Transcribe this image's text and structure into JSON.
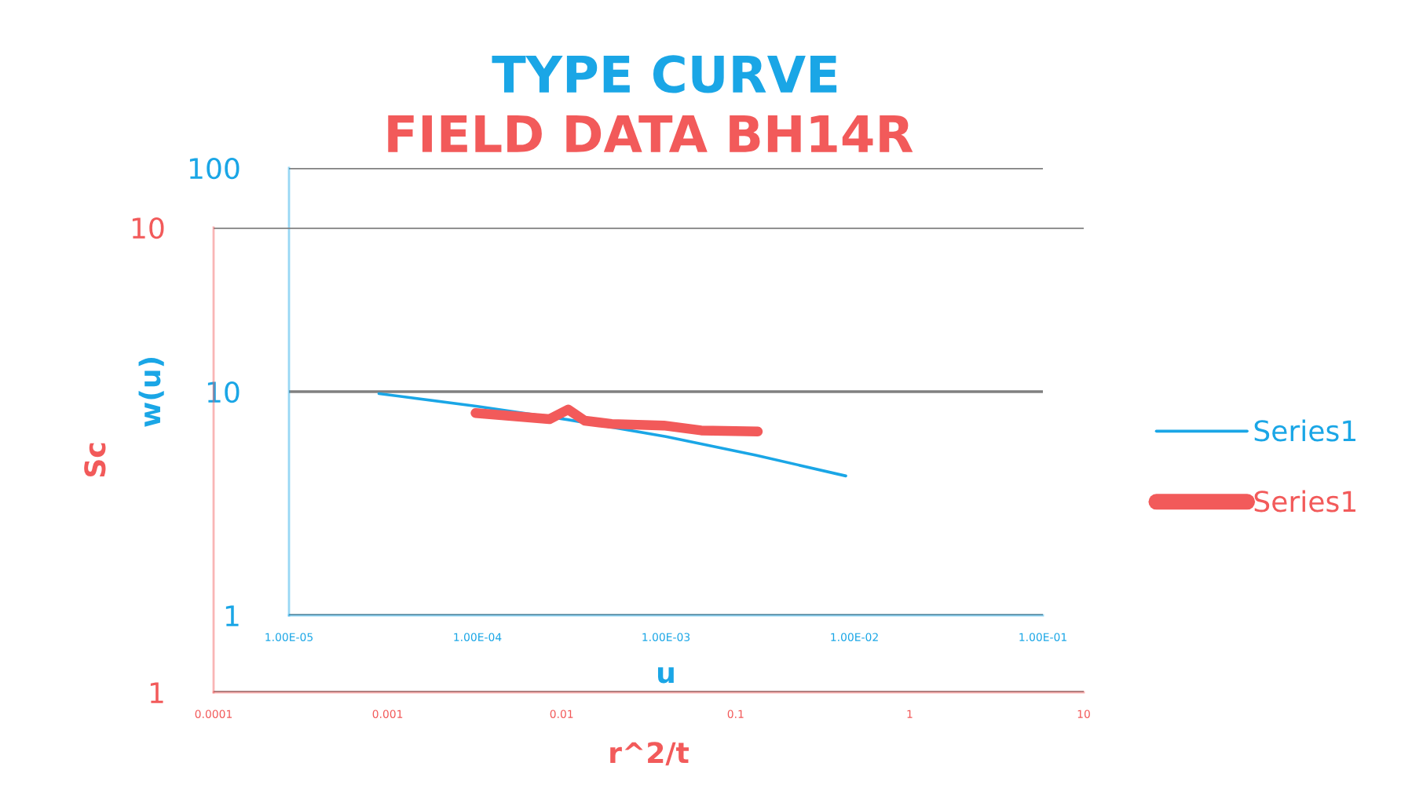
{
  "chart_data": [
    {
      "type": "line",
      "title": "TYPE CURVE",
      "xlabel": "u",
      "ylabel": "w(u)",
      "log": "xy",
      "grid": "y",
      "legend": "right",
      "xlim": [
        1e-05,
        0.1
      ],
      "ylim": [
        1,
        100
      ],
      "xticks": [
        {
          "value": 1e-05,
          "label": "1.00E-05"
        },
        {
          "value": 0.0001,
          "label": "1.00E-04"
        },
        {
          "value": 0.001,
          "label": "1.00E-03"
        },
        {
          "value": 0.01,
          "label": "1.00E-02"
        },
        {
          "value": 0.1,
          "label": "1.00E-01"
        }
      ],
      "yticks": [
        1,
        10,
        100
      ],
      "series": [
        {
          "name": "Series1",
          "color": "#1aa6e6",
          "x": [
            3e-05,
            0.0001,
            0.0003,
            0.001,
            0.003,
            0.009
          ],
          "values": [
            9.8,
            8.6,
            7.5,
            6.3,
            5.2,
            4.2
          ]
        }
      ]
    },
    {
      "type": "line",
      "title": "FIELD DATA BH14R",
      "xlabel": "r^2/t",
      "ylabel": "Sc",
      "log": "xy",
      "grid": "y",
      "legend": "right",
      "xlim": [
        0.0001,
        10
      ],
      "ylim": [
        1,
        10
      ],
      "xticks": [
        0.0001,
        0.001,
        0.01,
        0.1,
        1,
        10
      ],
      "yticks": [
        1,
        10
      ],
      "series": [
        {
          "name": "Series1",
          "color": "#f25a5a",
          "x": [
            0.0032,
            0.0085,
            0.0109,
            0.0136,
            0.0194,
            0.0386,
            0.0634,
            0.134
          ],
          "values": [
            3.99,
            3.87,
            4.06,
            3.84,
            3.78,
            3.75,
            3.66,
            3.64
          ]
        }
      ]
    }
  ]
}
